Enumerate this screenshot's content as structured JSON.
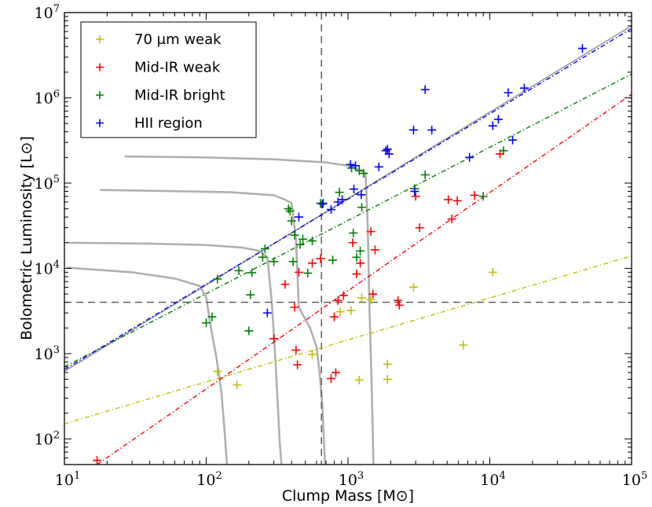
{
  "chart_data": {
    "type": "scatter",
    "x_scale": "log",
    "y_scale": "log",
    "xlim": [
      10,
      100000
    ],
    "ylim": [
      50,
      10000000
    ],
    "xlabel": "Clump Mass [M⊙]",
    "ylabel": "Bolometric Luminosity [L⊙]",
    "x_ticks": [
      {
        "value": 10,
        "base": "10",
        "exp": "1"
      },
      {
        "value": 100,
        "base": "10",
        "exp": "2"
      },
      {
        "value": 1000,
        "base": "10",
        "exp": "3"
      },
      {
        "value": 10000,
        "base": "10",
        "exp": "4"
      },
      {
        "value": 100000,
        "base": "10",
        "exp": "5"
      }
    ],
    "y_ticks": [
      {
        "value": 100,
        "base": "10",
        "exp": "2"
      },
      {
        "value": 1000,
        "base": "10",
        "exp": "3"
      },
      {
        "value": 10000,
        "base": "10",
        "exp": "4"
      },
      {
        "value": 100000,
        "base": "10",
        "exp": "5"
      },
      {
        "value": 1000000,
        "base": "10",
        "exp": "6"
      },
      {
        "value": 10000000,
        "base": "10",
        "exp": "7"
      }
    ],
    "legend_position": "top-left",
    "series": [
      {
        "name": "70 μm weak",
        "color": "#bfbf00",
        "fit": {
          "x": [
            10,
            100000
          ],
          "y": [
            150,
            14000
          ]
        },
        "points": [
          [
            120,
            620
          ],
          [
            165,
            430
          ],
          [
            560,
            980
          ],
          [
            880,
            3100
          ],
          [
            1050,
            3200
          ],
          [
            1200,
            490
          ],
          [
            1250,
            4500
          ],
          [
            1450,
            4300
          ],
          [
            1900,
            750
          ],
          [
            1900,
            500
          ],
          [
            2900,
            6000
          ],
          [
            6500,
            1260
          ],
          [
            10500,
            9000
          ]
        ]
      },
      {
        "name": "Mid-IR weak",
        "color": "#ff0000",
        "fit": {
          "x": [
            17,
            100000
          ],
          "y": [
            50,
            1100000
          ]
        },
        "points": [
          [
            17,
            56
          ],
          [
            300,
            1500
          ],
          [
            360,
            6500
          ],
          [
            420,
            3500
          ],
          [
            430,
            1100
          ],
          [
            440,
            740
          ],
          [
            450,
            9000
          ],
          [
            560,
            11500
          ],
          [
            640,
            13000
          ],
          [
            760,
            510
          ],
          [
            800,
            2700
          ],
          [
            820,
            600
          ],
          [
            850,
            4200
          ],
          [
            930,
            4800
          ],
          [
            1080,
            20000
          ],
          [
            1150,
            8600
          ],
          [
            1220,
            11500
          ],
          [
            1450,
            27000
          ],
          [
            1500,
            5000
          ],
          [
            1550,
            16500
          ],
          [
            2250,
            4200
          ],
          [
            2300,
            3700
          ],
          [
            3000,
            70000
          ],
          [
            3200,
            30000
          ],
          [
            5100,
            64000
          ],
          [
            5400,
            38000
          ],
          [
            5900,
            62000
          ],
          [
            7800,
            72000
          ],
          [
            11800,
            220000
          ]
        ]
      },
      {
        "name": "Mid-IR bright",
        "color": "#008000",
        "fit": {
          "x": [
            10,
            100000
          ],
          "y": [
            700,
            1900000
          ]
        },
        "points": [
          [
            100,
            2300
          ],
          [
            110,
            2700
          ],
          [
            120,
            7500
          ],
          [
            170,
            9400
          ],
          [
            200,
            1850
          ],
          [
            205,
            4900
          ],
          [
            210,
            8900
          ],
          [
            250,
            13500
          ],
          [
            260,
            17000
          ],
          [
            300,
            12000
          ],
          [
            380,
            50000
          ],
          [
            390,
            47000
          ],
          [
            400,
            36000
          ],
          [
            410,
            12000
          ],
          [
            420,
            24500
          ],
          [
            460,
            19000
          ],
          [
            480,
            22000
          ],
          [
            520,
            8800
          ],
          [
            560,
            21000
          ],
          [
            640,
            58000
          ],
          [
            670,
            58000
          ],
          [
            780,
            12500
          ],
          [
            870,
            78000
          ],
          [
            1060,
            150000
          ],
          [
            1090,
            26000
          ],
          [
            1150,
            13500
          ],
          [
            1200,
            140000
          ],
          [
            1220,
            16000
          ],
          [
            1250,
            52000
          ],
          [
            1290,
            130000
          ],
          [
            2950,
            86000
          ],
          [
            3500,
            125000
          ],
          [
            9000,
            70000
          ],
          [
            12500,
            240000
          ]
        ]
      },
      {
        "name": "HII region",
        "color": "#0000ff",
        "fit": {
          "x": [
            10,
            100000
          ],
          "y": [
            650,
            6500000
          ]
        },
        "points": [
          [
            270,
            3000
          ],
          [
            450,
            40000
          ],
          [
            660,
            57000
          ],
          [
            760,
            49000
          ],
          [
            850,
            60000
          ],
          [
            910,
            64000
          ],
          [
            1040,
            165000
          ],
          [
            1100,
            85000
          ],
          [
            1130,
            160000
          ],
          [
            1240,
            73000
          ],
          [
            1650,
            155000
          ],
          [
            1850,
            240000
          ],
          [
            1900,
            250000
          ],
          [
            1950,
            220000
          ],
          [
            2900,
            420000
          ],
          [
            2950,
            80000
          ],
          [
            3500,
            1250000
          ],
          [
            3900,
            420000
          ],
          [
            7200,
            200000
          ],
          [
            10500,
            470000
          ],
          [
            11500,
            560000
          ],
          [
            13500,
            1150000
          ],
          [
            14500,
            320000
          ],
          [
            17500,
            1300000
          ],
          [
            45000,
            3800000
          ]
        ]
      }
    ],
    "reference_lines": [
      {
        "name": "upper-envelope",
        "style": "solid",
        "color": "#999999",
        "x": [
          10,
          100000
        ],
        "y": [
          620,
          7000000
        ]
      },
      {
        "name": "luminosity-threshold",
        "style": "dashed",
        "color": "#555555",
        "y_value": 4000
      },
      {
        "name": "mass-threshold",
        "style": "dashed",
        "color": "#555555",
        "x_value": 650
      }
    ],
    "evolutionary_tracks": [
      {
        "x": [
          10.5,
          30,
          60,
          90,
          100,
          108,
          118,
          128,
          135,
          140
        ],
        "y": [
          10200,
          9000,
          7600,
          6200,
          4600,
          2000,
          900,
          350,
          120,
          50
        ]
      },
      {
        "x": [
          10.5,
          40,
          100,
          180,
          240,
          270,
          290,
          305,
          318,
          330,
          340
        ],
        "y": [
          20000,
          19500,
          18800,
          17500,
          16000,
          13500,
          4000,
          1100,
          300,
          90,
          50
        ]
      },
      {
        "x": [
          18,
          50,
          150,
          300,
          360,
          400,
          430,
          450,
          540,
          600,
          630,
          660,
          675,
          690
        ],
        "y": [
          83000,
          81000,
          78000,
          72000,
          64000,
          58000,
          22000,
          3500,
          2000,
          1200,
          600,
          250,
          100,
          50
        ]
      },
      {
        "x": [
          27,
          100,
          300,
          700,
          1000,
          1200,
          1330,
          1380,
          1420,
          1460,
          1490,
          1510
        ],
        "y": [
          205000,
          200000,
          190000,
          175000,
          160000,
          145000,
          130000,
          30000,
          3000,
          600,
          150,
          50
        ]
      }
    ]
  }
}
